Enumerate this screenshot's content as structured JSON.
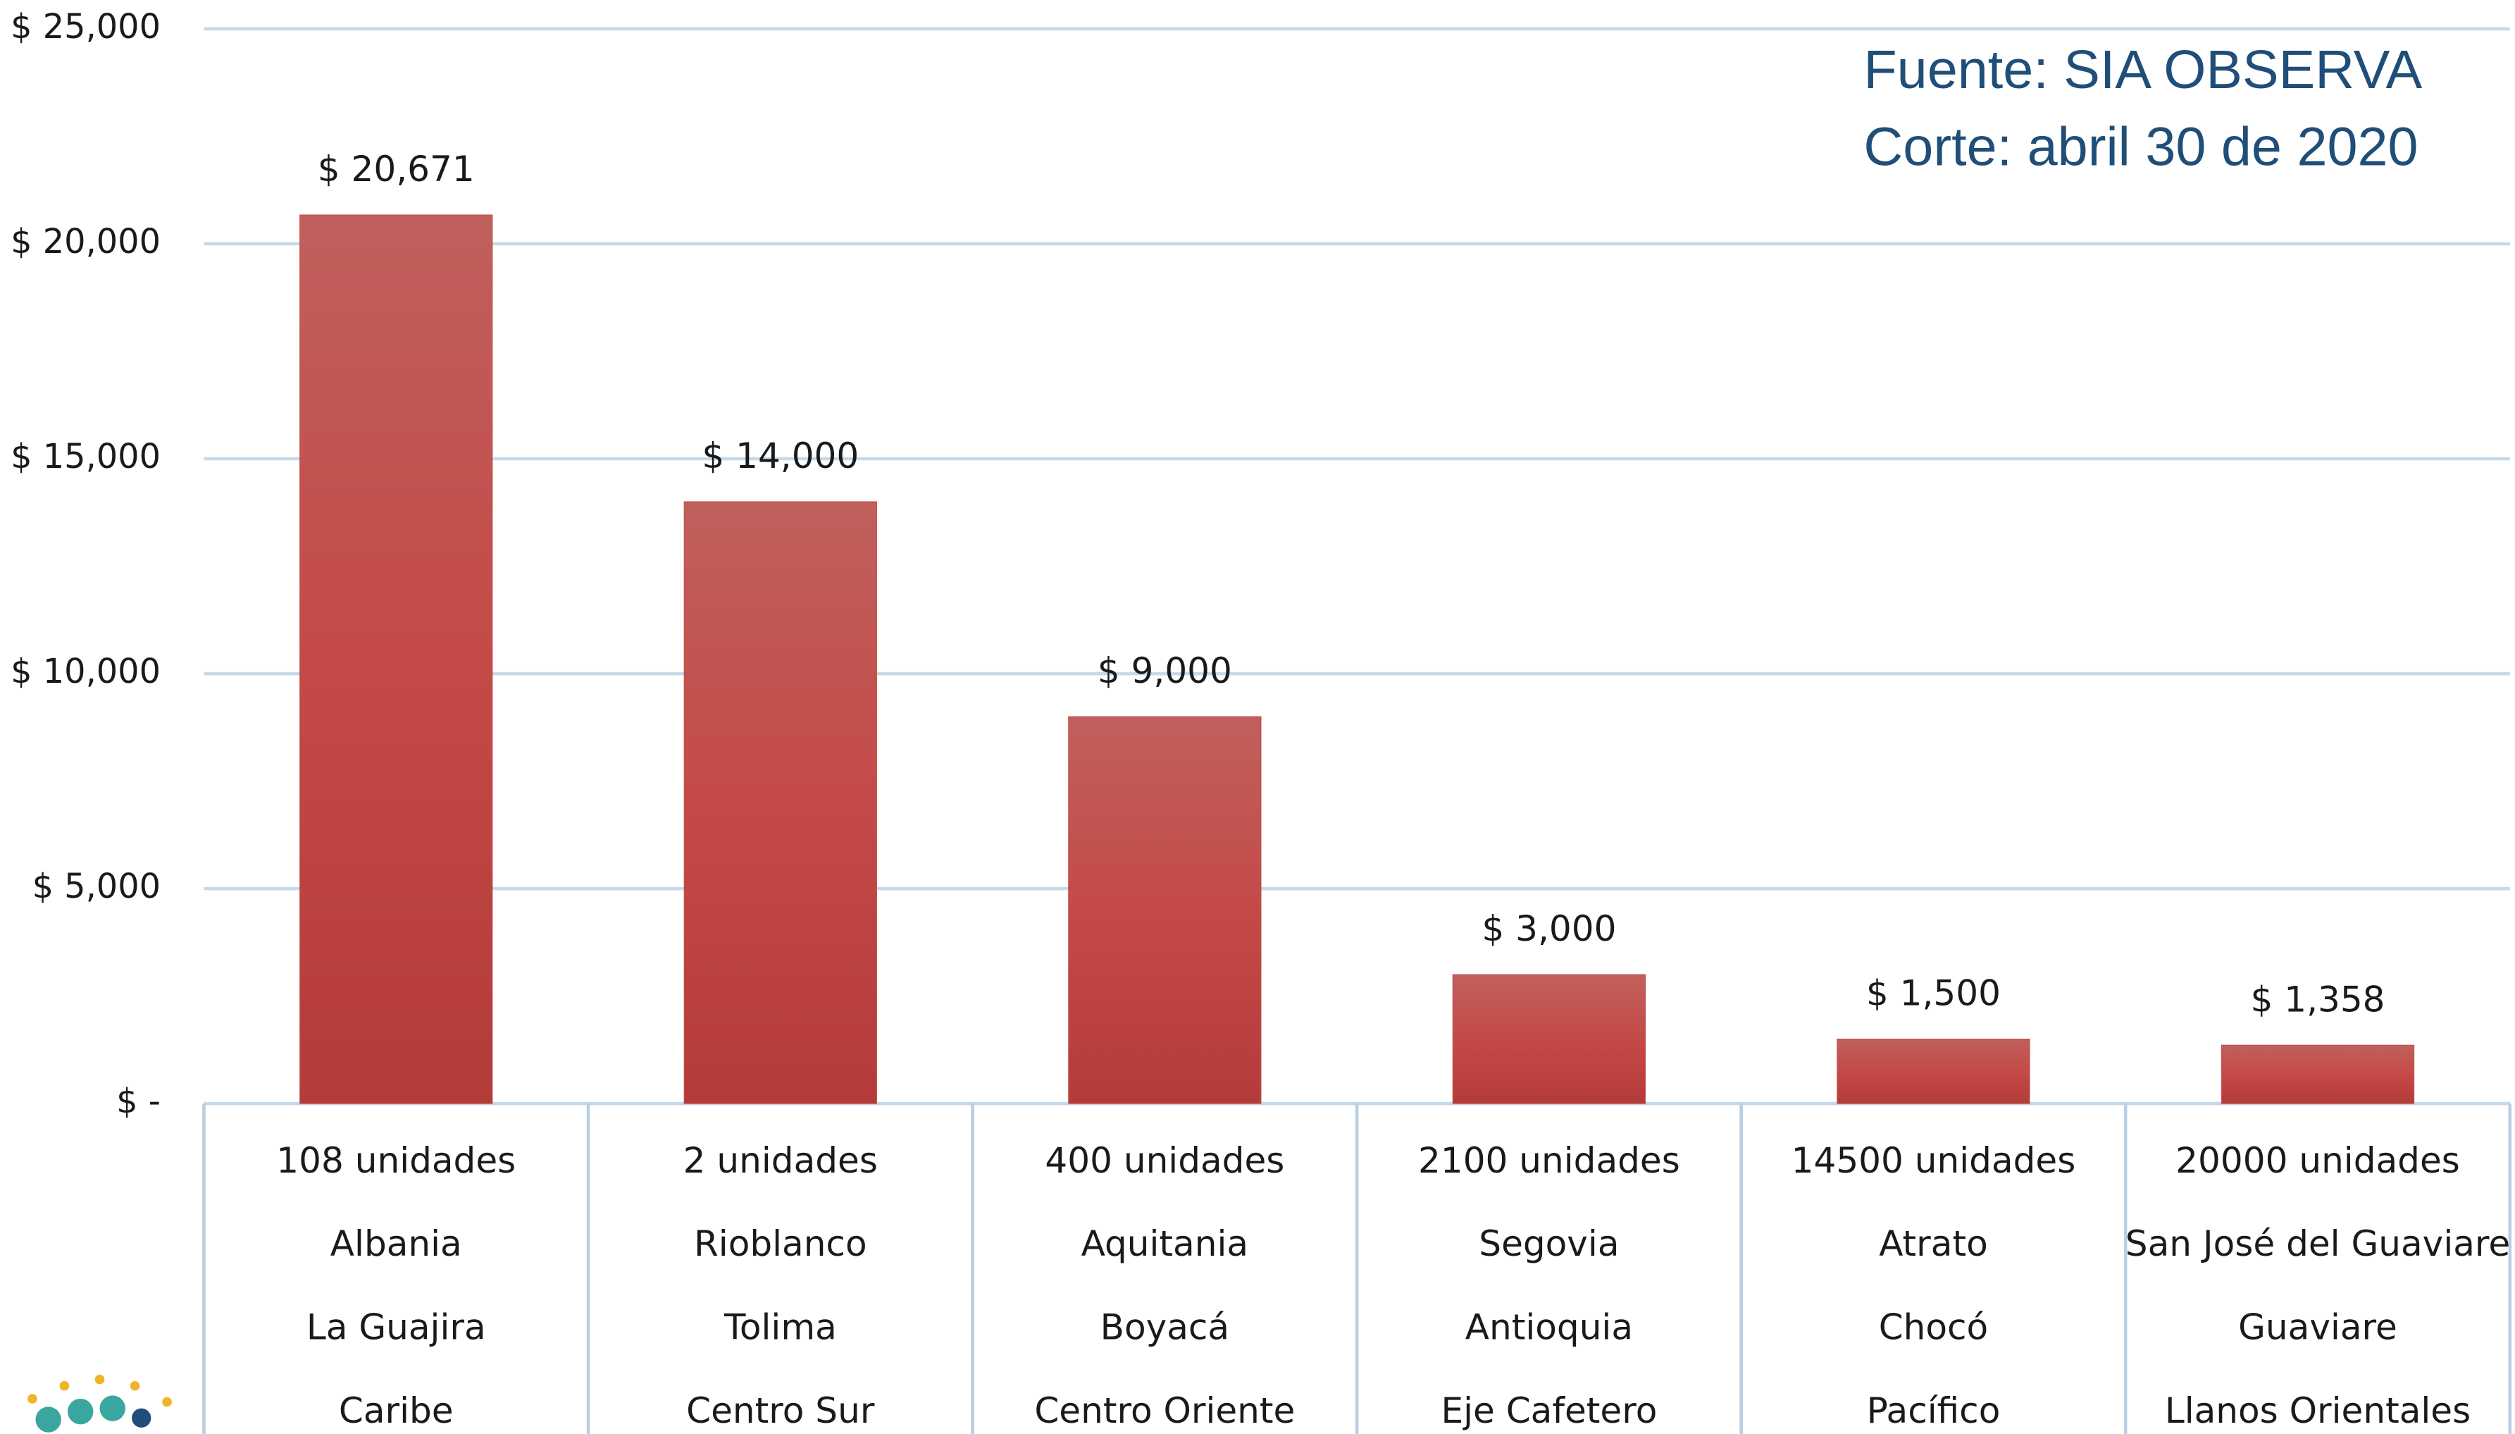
{
  "chart_data": {
    "type": "bar",
    "annotations": [
      "Fuente: SIA OBSERVA",
      "Corte: abril 30 de 2020"
    ],
    "categories": [
      [
        "108 unidades",
        "Albania",
        "La Guajira",
        "Caribe"
      ],
      [
        "2 unidades",
        "Rioblanco",
        "Tolima",
        "Centro Sur"
      ],
      [
        "400 unidades",
        "Aquitania",
        "Boyacá",
        "Centro Oriente"
      ],
      [
        "2100 unidades",
        "Segovia",
        "Antioquia",
        "Eje Cafetero"
      ],
      [
        "14500 unidades",
        "Atrato",
        "Chocó",
        "Pacífico"
      ],
      [
        "20000 unidades",
        "San José del Guaviare",
        "Guaviare",
        "Llanos Orientales"
      ]
    ],
    "values": [
      20671,
      14000,
      9000,
      3000,
      1500,
      1358
    ],
    "value_labels": [
      "$ 20,671",
      "$ 14,000",
      "$ 9,000",
      "$ 3,000",
      "$ 1,500",
      "$ 1,358"
    ],
    "color": "#c0504d",
    "ylim": [
      0,
      25000
    ],
    "yticks": [
      {
        "value": 0,
        "label": "$ -"
      },
      {
        "value": 5000,
        "label": "$ 5,000"
      },
      {
        "value": 10000,
        "label": "$ 10,000"
      },
      {
        "value": 15000,
        "label": "$ 15,000"
      },
      {
        "value": 20000,
        "label": "$ 20,000"
      },
      {
        "value": 25000,
        "label": "$ 25,000"
      }
    ],
    "grid": true
  }
}
